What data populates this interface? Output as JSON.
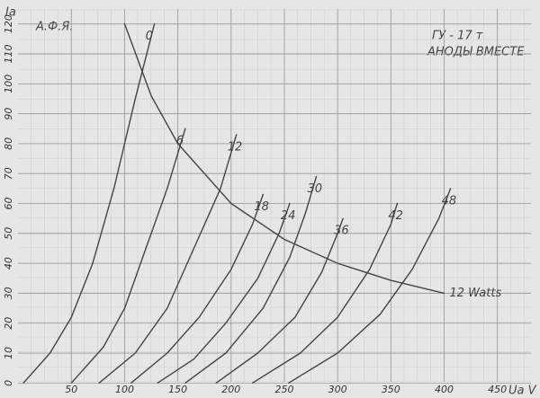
{
  "chart_data": {
    "type": "line",
    "annotations": [
      "А.Ф.Я.",
      "ГУ - 17 т",
      "АНОДЫ ВМЕСТЕ"
    ],
    "y_label": "Iа",
    "x_label": "Ua V",
    "xlim": [
      -17,
      490
    ],
    "ylim": [
      -5,
      128
    ],
    "xticks": [
      50,
      100,
      150,
      200,
      250,
      300,
      350,
      400,
      450
    ],
    "yticks": [
      0,
      10,
      20,
      30,
      40,
      50,
      60,
      70,
      80,
      90,
      100,
      110,
      120
    ],
    "grid": true,
    "color": "#444444",
    "series": [
      {
        "name": "0",
        "x": [
          5,
          30,
          50,
          70,
          90,
          110,
          128
        ],
        "values": [
          0,
          10,
          22,
          40,
          65,
          95,
          120
        ]
      },
      {
        "name": "6",
        "x": [
          50,
          80,
          100,
          120,
          140,
          157
        ],
        "values": [
          0,
          12,
          25,
          45,
          65,
          85
        ]
      },
      {
        "name": "12",
        "x": [
          76,
          110,
          140,
          165,
          190,
          205
        ],
        "values": [
          0,
          10,
          25,
          45,
          65,
          83
        ]
      },
      {
        "name": "18",
        "x": [
          106,
          140,
          170,
          200,
          220,
          230
        ],
        "values": [
          0,
          10,
          22,
          38,
          53,
          63
        ]
      },
      {
        "name": "24",
        "x": [
          131,
          165,
          195,
          225,
          245,
          255
        ],
        "values": [
          0,
          8,
          20,
          35,
          50,
          60
        ]
      },
      {
        "name": "30",
        "x": [
          157,
          195,
          230,
          255,
          270,
          280
        ],
        "values": [
          0,
          10,
          25,
          42,
          57,
          69
        ]
      },
      {
        "name": "36",
        "x": [
          186,
          225,
          260,
          285,
          300,
          305
        ],
        "values": [
          0,
          10,
          22,
          37,
          50,
          55
        ]
      },
      {
        "name": "42",
        "x": [
          220,
          265,
          300,
          330,
          350,
          356
        ],
        "values": [
          0,
          10,
          22,
          38,
          53,
          60
        ]
      },
      {
        "name": "48",
        "x": [
          254,
          300,
          340,
          370,
          395,
          406
        ],
        "values": [
          0,
          10,
          23,
          38,
          55,
          65
        ]
      },
      {
        "name": "12 Watts",
        "x": [
          100,
          125,
          150,
          200,
          250,
          300,
          350,
          400
        ],
        "values": [
          120,
          96,
          80,
          60,
          48,
          40,
          34.3,
          30
        ]
      }
    ]
  }
}
